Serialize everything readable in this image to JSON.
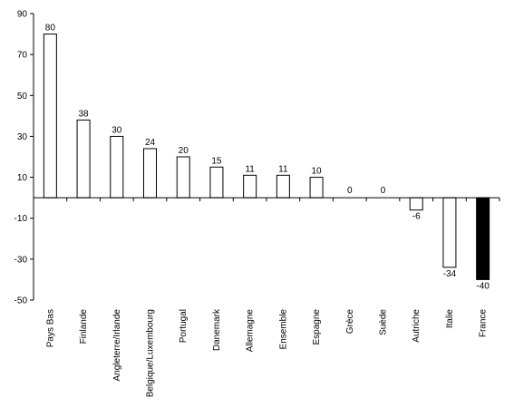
{
  "chart_data": {
    "type": "bar",
    "categories": [
      "Pays Bas",
      "Finlande",
      "Angleterre/Irlande",
      "Belgique/Luxembourg",
      "Portugal",
      "Danemark",
      "Allemagne",
      "Ensemble",
      "Espagne",
      "Grèce",
      "Suède",
      "Autriche",
      "Italie",
      "France"
    ],
    "values": [
      80,
      38,
      30,
      24,
      20,
      15,
      11,
      11,
      10,
      0,
      0,
      -6,
      -34,
      -40
    ],
    "data_labels": [
      "80",
      "38",
      "30",
      "24",
      "20",
      "15",
      "11",
      "11",
      "10",
      "0",
      "0",
      "-6",
      "-34",
      "-40"
    ],
    "ylim": [
      -50,
      90
    ],
    "yticks": [
      90,
      70,
      50,
      30,
      10,
      -10,
      -30,
      -50
    ],
    "ytick_labels": [
      "90",
      "70",
      "50",
      "30",
      "10",
      "-10",
      "-30",
      "-50"
    ],
    "highlight_category": "France",
    "colors": {
      "bar_fill": "#ffffff",
      "bar_stroke": "#000000",
      "highlight_fill": "#000000",
      "axis": "#000000"
    },
    "grid": false,
    "legend": false
  }
}
